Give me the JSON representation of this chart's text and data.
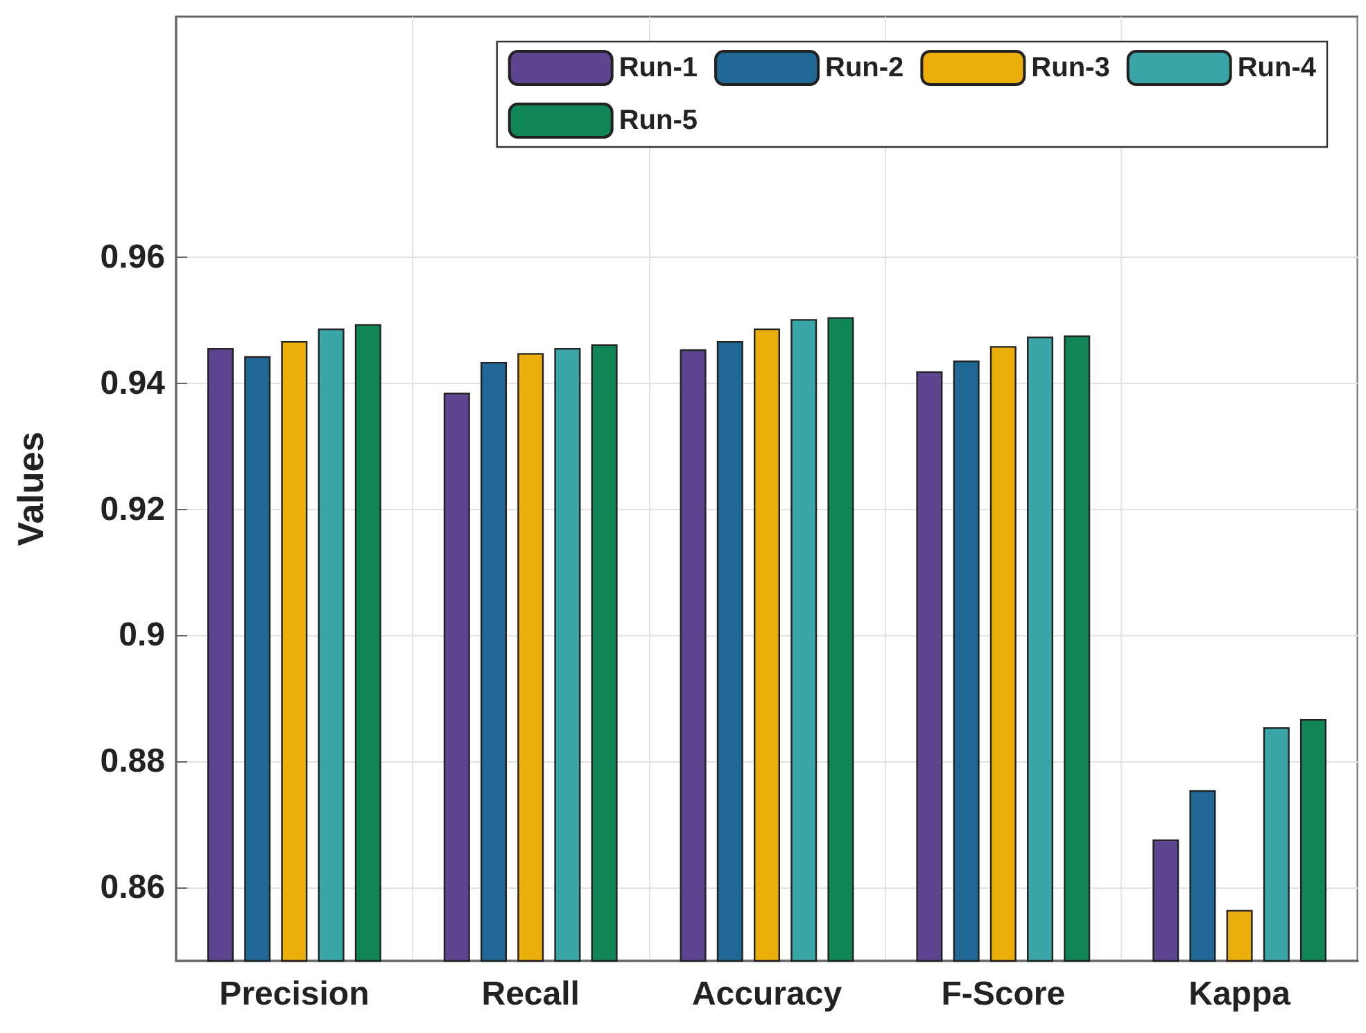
{
  "chart_data": {
    "type": "bar",
    "ylabel": "Values",
    "categories": [
      "Precision",
      "Recall",
      "Accuracy",
      "F-Score",
      "Kappa"
    ],
    "series": [
      {
        "name": "Run-1",
        "color": "#5e4590",
        "values": [
          0.9456,
          0.9385,
          0.9454,
          0.9419,
          0.8676
        ]
      },
      {
        "name": "Run-2",
        "color": "#1f6896",
        "values": [
          0.9443,
          0.9434,
          0.9467,
          0.9436,
          0.8754
        ]
      },
      {
        "name": "Run-3",
        "color": "#ebad0a",
        "values": [
          0.9467,
          0.9448,
          0.9487,
          0.9459,
          0.8564
        ]
      },
      {
        "name": "Run-4",
        "color": "#3aa6a7",
        "values": [
          0.9487,
          0.9456,
          0.9502,
          0.9474,
          0.8854
        ]
      },
      {
        "name": "Run-5",
        "color": "#108556",
        "values": [
          0.9494,
          0.9462,
          0.9505,
          0.9476,
          0.8867
        ]
      }
    ],
    "ylim": [
      0.8483,
      0.9982
    ],
    "yticks": [
      0.86,
      0.88,
      {
        "value": 0.9,
        "label": "0.9"
      },
      0.92,
      0.94,
      0.96
    ],
    "grid": true,
    "legend": "top right"
  }
}
